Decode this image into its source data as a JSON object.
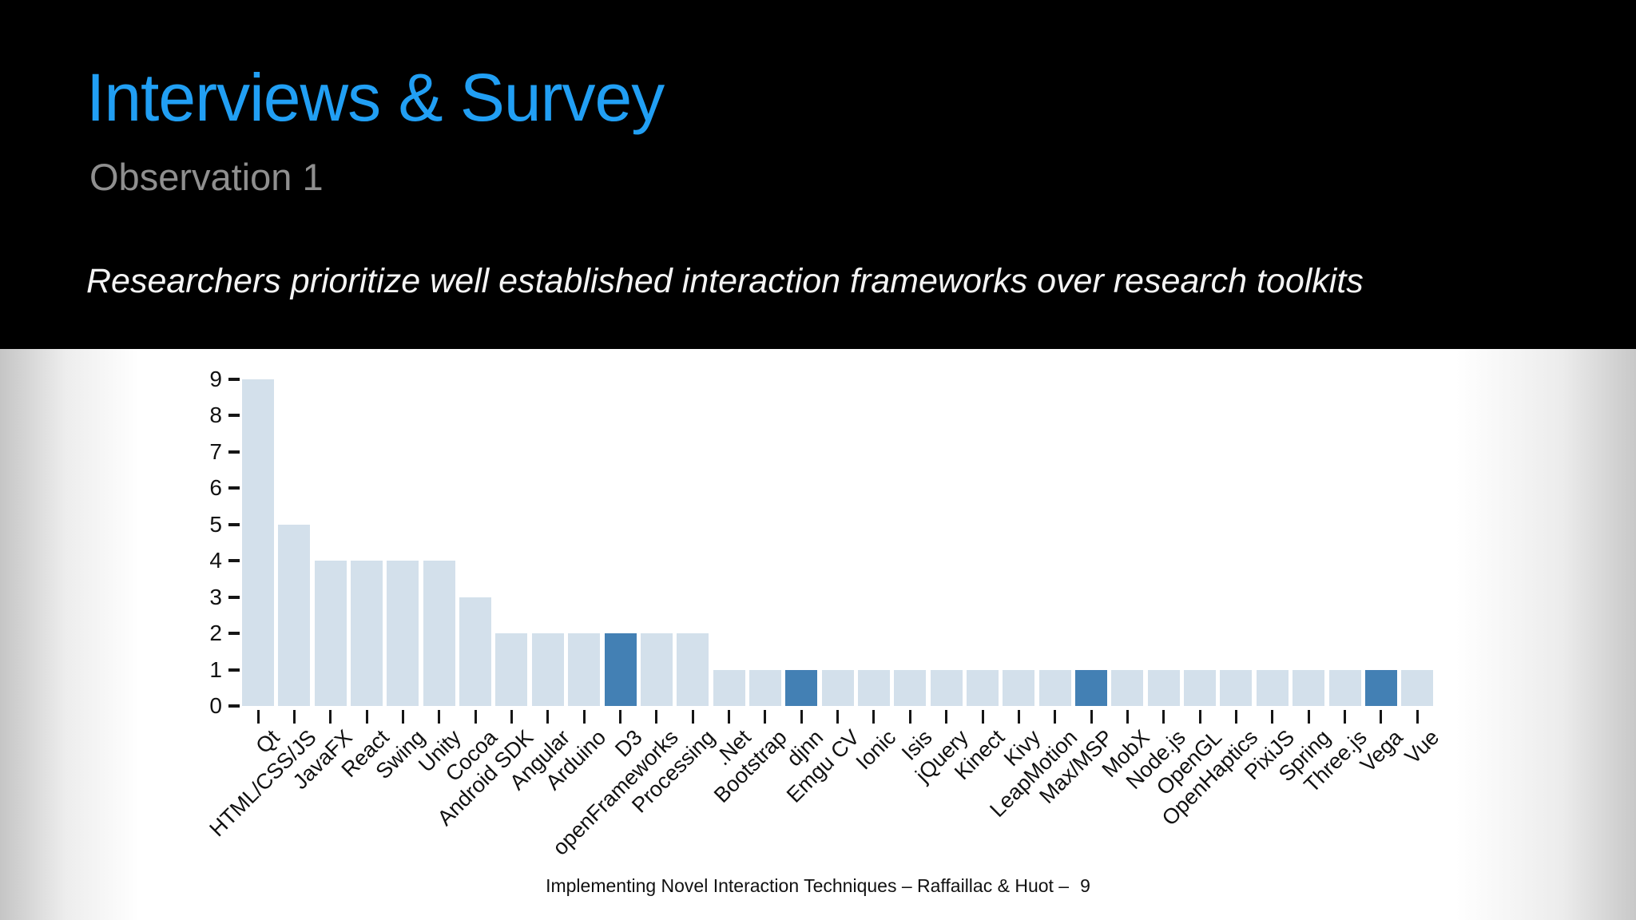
{
  "slide": {
    "title": "Interviews & Survey",
    "subtitle": "Observation 1",
    "statement": "Researchers prioritize well established interaction frameworks over research toolkits",
    "title_color": "#219ff4",
    "subtitle_color": "#8f8f8f"
  },
  "footer": {
    "text": "Implementing Novel Interaction Techniques – Raffaillac & Huot –",
    "page": "9"
  },
  "chart_data": {
    "type": "bar",
    "title": "",
    "xlabel": "",
    "ylabel": "",
    "categories": [
      "Qt",
      "HTML/CSS/JS",
      "JavaFX",
      "React",
      "Swing",
      "Unity",
      "Cocoa",
      "Android SDK",
      "Angular",
      "Arduino",
      "D3",
      "openFrameworks",
      "Processing",
      ".Net",
      "Bootstrap",
      "djnn",
      "Emgu CV",
      "Ionic",
      "Isis",
      "jQuery",
      "Kinect",
      "Kivy",
      "LeapMotion",
      "Max/MSP",
      "MobX",
      "Node.js",
      "OpenGL",
      "OpenHaptics",
      "PixiJS",
      "Spring",
      "Three.js",
      "Vega",
      "Vue"
    ],
    "values": [
      9,
      5,
      4,
      4,
      4,
      4,
      3,
      2,
      2,
      2,
      2,
      2,
      2,
      1,
      1,
      1,
      1,
      1,
      1,
      1,
      1,
      1,
      1,
      1,
      1,
      1,
      1,
      1,
      1,
      1,
      1,
      1,
      1
    ],
    "highlighted_categories": [
      "D3",
      "djnn",
      "Max/MSP",
      "Vega"
    ],
    "bar_color": "#d3e0eb",
    "highlight_color": "#4380b4",
    "ylim": [
      0,
      9
    ],
    "yticks": [
      0,
      1,
      2,
      3,
      4,
      5,
      6,
      7,
      8,
      9
    ],
    "xtick_rotation_deg": 45,
    "grid": false,
    "legend": "none"
  }
}
